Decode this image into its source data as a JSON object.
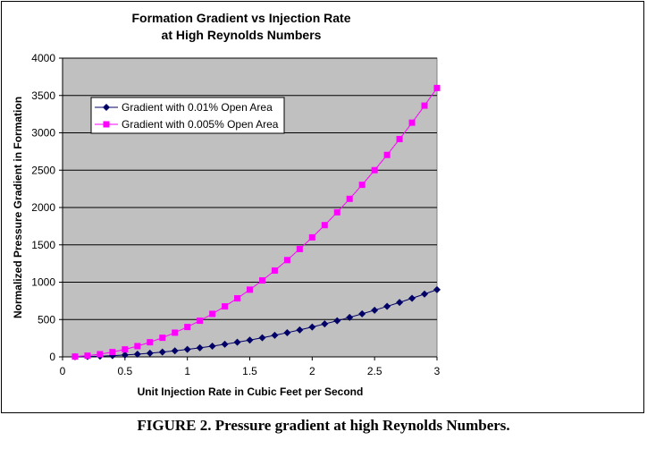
{
  "chart_data": {
    "type": "line",
    "title": [
      "Formation Gradient vs Injection Rate",
      "at High Reynolds Numbers"
    ],
    "xlabel": "Unit Injection Rate in Cubic Feet per Second",
    "ylabel": "Normalized Pressure Gradient in Formation",
    "xlim": [
      0,
      3
    ],
    "ylim": [
      0,
      4000
    ],
    "xticks": [
      "0",
      "0.5",
      "1",
      "1.5",
      "2",
      "2.5",
      "3"
    ],
    "xtick_values": [
      0,
      0.5,
      1,
      1.5,
      2,
      2.5,
      3
    ],
    "yticks": [
      "0",
      "500",
      "1000",
      "1500",
      "2000",
      "2500",
      "3000",
      "3500",
      "4000"
    ],
    "ytick_values": [
      0,
      500,
      1000,
      1500,
      2000,
      2500,
      3000,
      3500,
      4000
    ],
    "grid": "horizontal",
    "legend_position": "top-left",
    "x": [
      0.1,
      0.2,
      0.3,
      0.4,
      0.5,
      0.6,
      0.7,
      0.8,
      0.9,
      1.0,
      1.1,
      1.2,
      1.3,
      1.4,
      1.5,
      1.6,
      1.7,
      1.8,
      1.9,
      2.0,
      2.1,
      2.2,
      2.3,
      2.4,
      2.5,
      2.6,
      2.7,
      2.8,
      2.9,
      3.0
    ],
    "series": [
      {
        "name": "Gradient with 0.01% Open Area",
        "color": "#000066",
        "marker": "diamond",
        "values": [
          1,
          4,
          9,
          16,
          25,
          36,
          49,
          64,
          81,
          100,
          121,
          144,
          169,
          196,
          225,
          256,
          289,
          324,
          361,
          400,
          441,
          484,
          529,
          576,
          625,
          676,
          729,
          784,
          841,
          900
        ]
      },
      {
        "name": "Gradient with 0.005% Open Area",
        "color": "#ff00ff",
        "marker": "square",
        "values": [
          4,
          16,
          36,
          64,
          100,
          144,
          196,
          256,
          324,
          400,
          484,
          576,
          676,
          784,
          900,
          1024,
          1156,
          1296,
          1444,
          1600,
          1764,
          1936,
          2116,
          2304,
          2500,
          2704,
          2916,
          3136,
          3364,
          3600
        ]
      }
    ]
  },
  "caption": "FIGURE 2. Pressure gradient at high Reynolds Numbers."
}
